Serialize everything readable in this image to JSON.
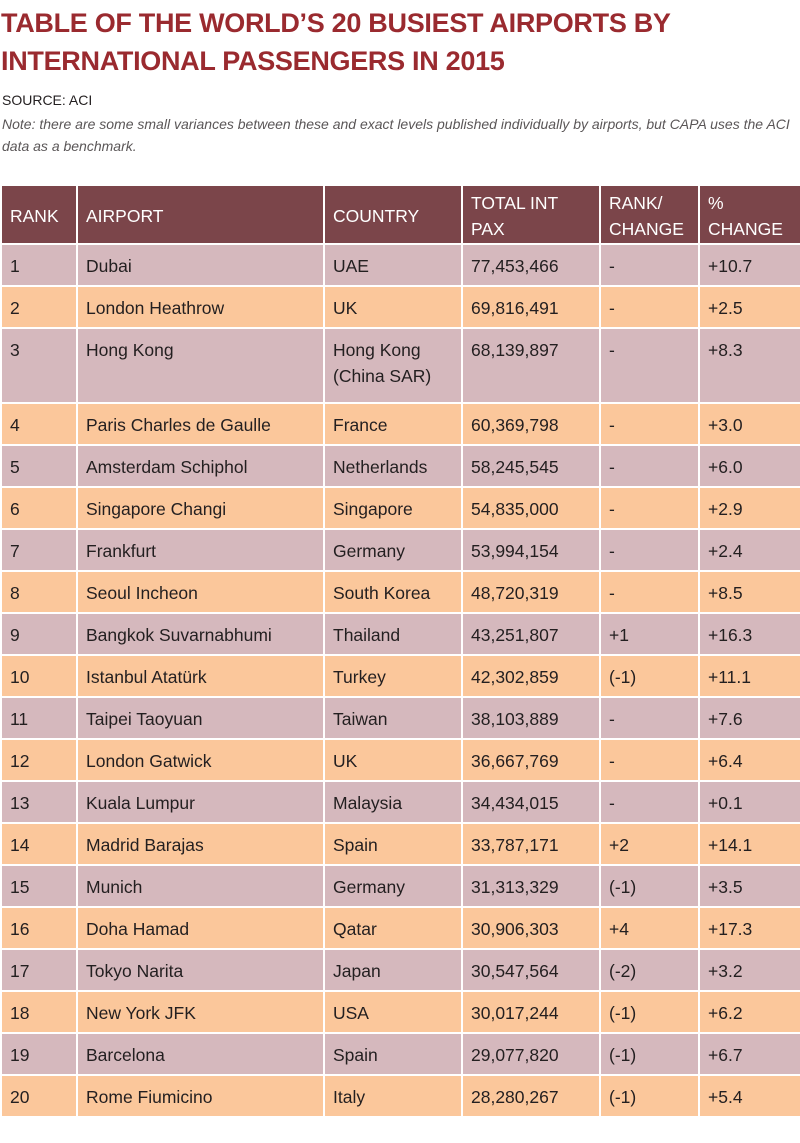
{
  "title": {
    "line1": "TABLE OF THE WORLD’S 20 BUSIEST AIRPORTS BY",
    "line2": "INTERNATIONAL PASSENGERS IN 2015"
  },
  "source": "SOURCE: ACI",
  "note": "Note: there are some small variances between these and exact levels published individually by airports, but CAPA uses the ACI data as a benchmark.",
  "table": {
    "headers": {
      "rank": "RANK",
      "airport": "AIRPORT",
      "country": "COUNTRY",
      "pax": [
        "TOTAL INT",
        "PAX"
      ],
      "rank_change": [
        "RANK/",
        "CHANGE"
      ],
      "pct_change": [
        "%",
        "CHANGE"
      ]
    },
    "rows": [
      {
        "rank": "1",
        "airport": "Dubai",
        "country": [
          "UAE"
        ],
        "pax": "77,453,466",
        "rank_change": "-",
        "pct_change": "+10.7"
      },
      {
        "rank": "2",
        "airport": "London Heathrow",
        "country": [
          "UK"
        ],
        "pax": "69,816,491",
        "rank_change": "-",
        "pct_change": "+2.5"
      },
      {
        "rank": "3",
        "airport": "Hong Kong",
        "country": [
          "Hong Kong",
          "(China SAR)"
        ],
        "pax": "68,139,897",
        "rank_change": "-",
        "pct_change": "+8.3"
      },
      {
        "rank": "4",
        "airport": "Paris Charles de Gaulle",
        "country": [
          "France"
        ],
        "pax": "60,369,798",
        "rank_change": "-",
        "pct_change": "+3.0"
      },
      {
        "rank": "5",
        "airport": "Amsterdam Schiphol",
        "country": [
          "Netherlands"
        ],
        "pax": "58,245,545",
        "rank_change": "-",
        "pct_change": "+6.0"
      },
      {
        "rank": "6",
        "airport": "Singapore Changi",
        "country": [
          "Singapore"
        ],
        "pax": "54,835,000",
        "rank_change": "-",
        "pct_change": "+2.9"
      },
      {
        "rank": "7",
        "airport": "Frankfurt",
        "country": [
          "Germany"
        ],
        "pax": "53,994,154",
        "rank_change": "-",
        "pct_change": "+2.4"
      },
      {
        "rank": "8",
        "airport": "Seoul Incheon",
        "country": [
          "South Korea"
        ],
        "pax": "48,720,319",
        "rank_change": "-",
        "pct_change": "+8.5"
      },
      {
        "rank": "9",
        "airport": "Bangkok Suvarnabhumi",
        "country": [
          "Thailand"
        ],
        "pax": "43,251,807",
        "rank_change": "+1",
        "pct_change": "+16.3"
      },
      {
        "rank": "10",
        "airport": "Istanbul Atatürk",
        "country": [
          "Turkey"
        ],
        "pax": "42,302,859",
        "rank_change": "(-1)",
        "pct_change": "+11.1"
      },
      {
        "rank": "11",
        "airport": "Taipei Taoyuan",
        "country": [
          "Taiwan"
        ],
        "pax": "38,103,889",
        "rank_change": "-",
        "pct_change": "+7.6"
      },
      {
        "rank": "12",
        "airport": "London Gatwick",
        "country": [
          "UK"
        ],
        "pax": "36,667,769",
        "rank_change": "-",
        "pct_change": "+6.4"
      },
      {
        "rank": "13",
        "airport": "Kuala Lumpur",
        "country": [
          "Malaysia"
        ],
        "pax": "34,434,015",
        "rank_change": "-",
        "pct_change": "+0.1"
      },
      {
        "rank": "14",
        "airport": "Madrid Barajas",
        "country": [
          "Spain"
        ],
        "pax": "33,787,171",
        "rank_change": "+2",
        "pct_change": "+14.1"
      },
      {
        "rank": "15",
        "airport": "Munich",
        "country": [
          "Germany"
        ],
        "pax": "31,313,329",
        "rank_change": "(-1)",
        "pct_change": "+3.5"
      },
      {
        "rank": "16",
        "airport": "Doha Hamad",
        "country": [
          "Qatar"
        ],
        "pax": "30,906,303",
        "rank_change": "+4",
        "pct_change": "+17.3"
      },
      {
        "rank": "17",
        "airport": "Tokyo Narita",
        "country": [
          "Japan"
        ],
        "pax": "30,547,564",
        "rank_change": "(-2)",
        "pct_change": "+3.2"
      },
      {
        "rank": "18",
        "airport": "New York JFK",
        "country": [
          "USA"
        ],
        "pax": "30,017,244",
        "rank_change": "(-1)",
        "pct_change": "+6.2"
      },
      {
        "rank": "19",
        "airport": "Barcelona",
        "country": [
          "Spain"
        ],
        "pax": "29,077,820",
        "rank_change": "(-1)",
        "pct_change": "+6.7"
      },
      {
        "rank": "20",
        "airport": "Rome Fiumicino",
        "country": [
          "Italy"
        ],
        "pax": "28,280,267",
        "rank_change": "(-1)",
        "pct_change": "+5.4"
      }
    ]
  },
  "colors": {
    "title": "#9a2a2f",
    "header_bg": "#7b454a",
    "row_odd": "#d5b8bd",
    "row_even": "#fbc79b"
  }
}
